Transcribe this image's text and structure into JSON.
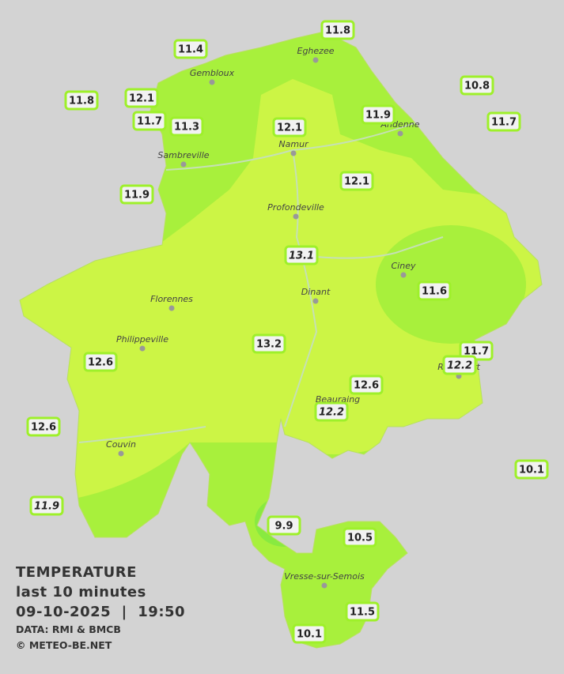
{
  "legend": {
    "title": "TEMPERATURE",
    "period": "last 10 minutes",
    "datetime": "09-10-2025  |  19:50",
    "source": "DATA: RMI & BMCB",
    "copyright": "© METEO-BE.NET"
  },
  "cities": [
    "Gembloux",
    "Eghezee",
    "Andenne",
    "Namur",
    "Sambreville",
    "Profondeville",
    "Ciney",
    "Dinant",
    "Florennes",
    "Philippeville",
    "Rochefort",
    "Beauraing",
    "Couvin",
    "Vresse-sur-Semois"
  ],
  "temperatures": [
    {
      "value": 11.4
    },
    {
      "value": 11.8
    },
    {
      "value": 10.8
    },
    {
      "value": 11.8
    },
    {
      "value": 12.1
    },
    {
      "value": 11.7
    },
    {
      "value": 11.3
    },
    {
      "value": 12.1
    },
    {
      "value": 11.9
    },
    {
      "value": 11.7
    },
    {
      "value": 11.9
    },
    {
      "value": 12.1
    },
    {
      "value": 13.1,
      "italic": true
    },
    {
      "value": 11.6
    },
    {
      "value": 13.2
    },
    {
      "value": 11.7
    },
    {
      "value": 12.2,
      "italic": true
    },
    {
      "value": 12.6
    },
    {
      "value": 12.6
    },
    {
      "value": 12.2,
      "italic": true
    },
    {
      "value": 12.6
    },
    {
      "value": 10.1
    },
    {
      "value": 11.9,
      "italic": true
    },
    {
      "value": 9.9
    },
    {
      "value": 10.5
    },
    {
      "value": 11.5
    },
    {
      "value": 10.1
    }
  ]
}
